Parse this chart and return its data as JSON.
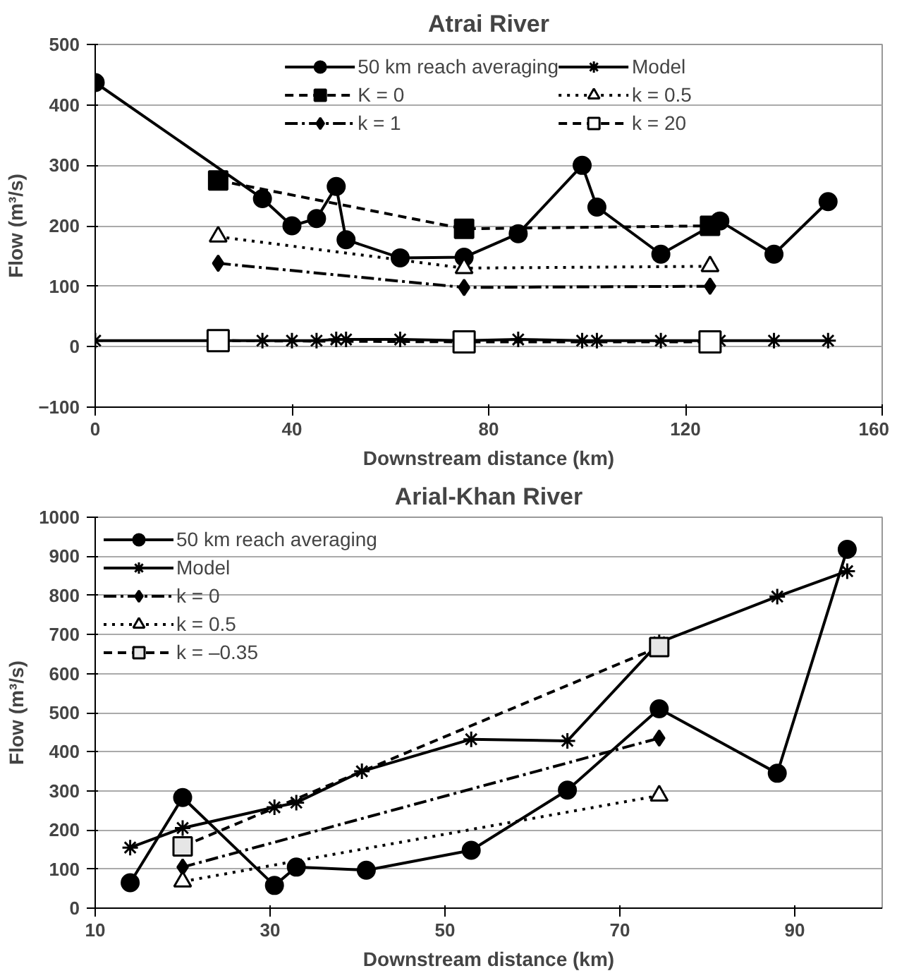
{
  "chart_data": [
    {
      "type": "line",
      "title": "Atrai River",
      "xlabel": "Downstream distance (km)",
      "ylabel": "Flow (m³/s)",
      "xlim": [
        0,
        160
      ],
      "xticks": [
        0,
        40,
        80,
        120,
        160
      ],
      "ylim": [
        -100,
        500
      ],
      "yticks": [
        {
          "value": -100,
          "label": "−100"
        },
        0,
        100,
        200,
        300,
        400,
        500
      ],
      "grid": "y",
      "legend": "top",
      "series": [
        {
          "name": "50 km reach averaging",
          "color": "#000000",
          "marker": "circle",
          "line_style": "solid",
          "x": [
            0,
            34,
            40,
            45,
            49,
            51,
            62,
            75,
            86,
            99,
            102,
            115,
            127,
            138,
            149
          ],
          "values": [
            437,
            245,
            200,
            212,
            265,
            177,
            147,
            148,
            187,
            300,
            231,
            153,
            208,
            153,
            240
          ]
        },
        {
          "name": "Model",
          "color": "#000000",
          "marker": "cross",
          "line_style": "solid",
          "x": [
            0,
            34,
            40,
            45,
            49,
            51,
            62,
            75,
            86,
            99,
            102,
            115,
            127,
            138,
            149
          ],
          "values": [
            10,
            10,
            10,
            10,
            12,
            12,
            12,
            10,
            12,
            10,
            10,
            10,
            10,
            10,
            10
          ]
        },
        {
          "name": "K = 0",
          "color": "#000000",
          "marker": "square",
          "line_style": "dashed",
          "x": [
            25,
            75,
            125
          ],
          "values": [
            275,
            195,
            200
          ]
        },
        {
          "name": "k = 0.5",
          "color": "#ffffff",
          "marker": "triangle",
          "line_style": "dotted",
          "x": [
            25,
            75,
            125
          ],
          "values": [
            182,
            130,
            133
          ]
        },
        {
          "name": "k = 1",
          "color": "#000000",
          "marker": "diamond",
          "line_style": "dashdot",
          "x": [
            25,
            75,
            125
          ],
          "values": [
            138,
            98,
            100
          ]
        },
        {
          "name": "k = 20",
          "color": "#000000",
          "marker": "square",
          "line_style": "dashed",
          "x": [
            25,
            75,
            125
          ],
          "values": [
            10,
            8,
            8
          ]
        }
      ]
    },
    {
      "type": "line",
      "title": "Arial-Khan River",
      "xlabel": "Downstream distance (km)",
      "ylabel": "Flow (m³/s)",
      "xlim": [
        10,
        100
      ],
      "xticks": [
        10,
        30,
        50,
        70,
        90
      ],
      "ylim": [
        0,
        1000
      ],
      "yticks": [
        0,
        100,
        200,
        300,
        400,
        500,
        600,
        700,
        800,
        900,
        1000
      ],
      "grid": "y",
      "legend": "top left",
      "series": [
        {
          "name": "50 km reach averaging",
          "color": "#000000",
          "marker": "circle",
          "line_style": "solid",
          "x": [
            14,
            20,
            30.5,
            33,
            41,
            53,
            64,
            74.5,
            88,
            96
          ],
          "values": [
            65,
            283,
            58,
            105,
            97,
            148,
            302,
            510,
            345,
            918
          ]
        },
        {
          "name": "Model",
          "color": "#000000",
          "marker": "cross",
          "line_style": "solid",
          "x": [
            14,
            20,
            30.5,
            33,
            40.5,
            53,
            64,
            74.5,
            88,
            96
          ],
          "values": [
            155,
            205,
            258,
            270,
            350,
            432,
            428,
            680,
            797,
            862
          ]
        },
        {
          "name": "k = 0",
          "color": "#000000",
          "marker": "diamond",
          "line_style": "dashdot",
          "x": [
            20,
            74.5
          ],
          "values": [
            105,
            435
          ]
        },
        {
          "name": "k = 0.5",
          "color": "#ffffff",
          "marker": "triangle",
          "line_style": "dotted",
          "x": [
            20,
            74.5
          ],
          "values": [
            68,
            288
          ]
        },
        {
          "name": "k = –0.35",
          "color": "#e6e6e6",
          "marker": "square",
          "line_style": "dashed",
          "x": [
            20,
            74.5
          ],
          "values": [
            158,
            668
          ]
        }
      ]
    }
  ]
}
